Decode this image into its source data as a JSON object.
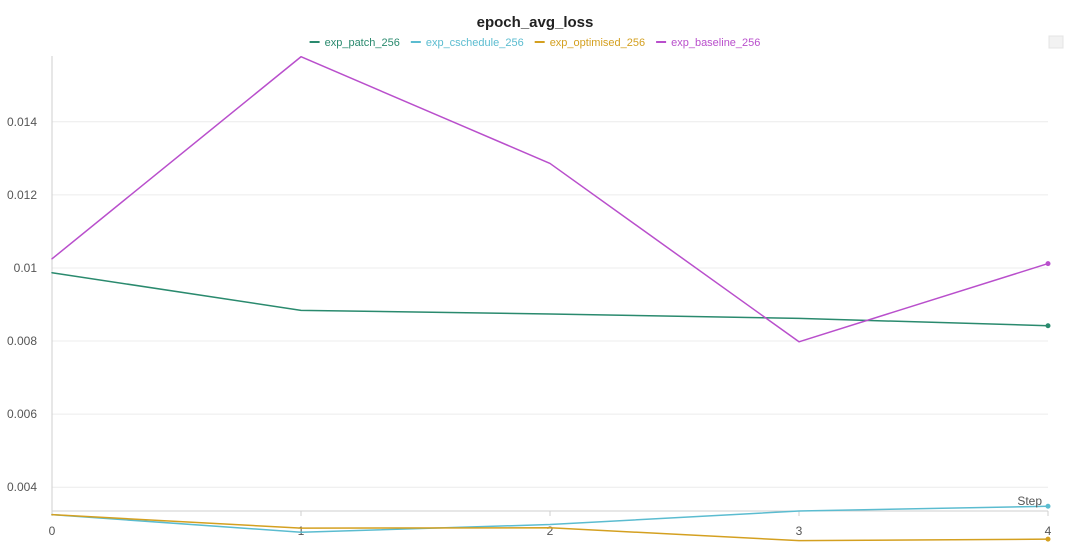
{
  "chart_data": {
    "type": "line",
    "title": "epoch_avg_loss",
    "xlabel": "Step",
    "ylabel": "",
    "x": [
      0,
      1,
      2,
      3,
      4
    ],
    "xlim": [
      0,
      4
    ],
    "ylim": [
      0.00335,
      0.0158
    ],
    "x_ticks": [
      0,
      1,
      2,
      3,
      4
    ],
    "y_ticks": [
      0.004,
      0.006,
      0.008,
      0.01,
      0.012,
      0.014
    ],
    "y_tick_labels": [
      "0.004",
      "0.006",
      "0.008",
      "0.01",
      "0.012",
      "0.014"
    ],
    "grid": true,
    "legend_position": "top-center",
    "series": [
      {
        "name": "exp_patch_256",
        "color": "#2a8a6e",
        "values": [
          0.00987,
          0.00884,
          0.00874,
          0.00862,
          0.00842
        ]
      },
      {
        "name": "exp_cschedule_256",
        "color": "#5bbcd0",
        "values": [
          0.00325,
          0.00277,
          0.00298,
          0.00335,
          0.00348
        ]
      },
      {
        "name": "exp_optimised_256",
        "color": "#d4a020",
        "values": [
          0.00325,
          0.00288,
          0.00289,
          0.00254,
          0.00258
        ]
      },
      {
        "name": "exp_baseline_256",
        "color": "#b94fcc",
        "values": [
          0.01025,
          0.01578,
          0.01286,
          0.00798,
          0.01012
        ]
      }
    ]
  }
}
